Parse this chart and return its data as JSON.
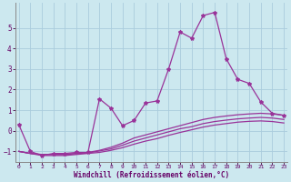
{
  "xlabel": "Windchill (Refroidissement éolien,°C)",
  "background_color": "#cce8ef",
  "grid_color": "#aaccdd",
  "line_color": "#993399",
  "x_hours": [
    0,
    1,
    2,
    3,
    4,
    5,
    6,
    7,
    8,
    9,
    10,
    11,
    12,
    13,
    14,
    15,
    16,
    17,
    18,
    19,
    20,
    21,
    22,
    23
  ],
  "line1": [
    0.3,
    -1.0,
    -1.2,
    -1.1,
    -1.1,
    -1.05,
    -1.05,
    1.55,
    1.1,
    0.25,
    0.5,
    1.35,
    1.45,
    3.0,
    4.8,
    4.5,
    5.6,
    5.75,
    3.5,
    2.5,
    2.3,
    1.4,
    0.85,
    0.75
  ],
  "line2": [
    -1.0,
    -1.1,
    -1.15,
    -1.15,
    -1.15,
    -1.1,
    -1.05,
    -0.95,
    -0.8,
    -0.6,
    -0.35,
    -0.2,
    -0.05,
    0.1,
    0.25,
    0.4,
    0.55,
    0.65,
    0.72,
    0.78,
    0.82,
    0.85,
    0.82,
    0.75
  ],
  "line3": [
    -1.0,
    -1.1,
    -1.15,
    -1.15,
    -1.15,
    -1.1,
    -1.08,
    -0.98,
    -0.88,
    -0.7,
    -0.5,
    -0.35,
    -0.2,
    -0.05,
    0.1,
    0.2,
    0.35,
    0.45,
    0.52,
    0.58,
    0.62,
    0.65,
    0.62,
    0.55
  ],
  "line4": [
    -1.0,
    -1.1,
    -1.2,
    -1.2,
    -1.2,
    -1.15,
    -1.1,
    -1.05,
    -0.95,
    -0.82,
    -0.65,
    -0.5,
    -0.38,
    -0.22,
    -0.08,
    0.05,
    0.18,
    0.28,
    0.35,
    0.42,
    0.46,
    0.48,
    0.45,
    0.38
  ],
  "ylim": [
    -1.5,
    6.2
  ],
  "yticks": [
    -1,
    0,
    1,
    2,
    3,
    4,
    5
  ],
  "xtick_labels": [
    "0",
    "1",
    "2",
    "3",
    "4",
    "5",
    "6",
    "7",
    "8",
    "9",
    "10",
    "11",
    "12",
    "13",
    "14",
    "15",
    "16",
    "17",
    "18",
    "19",
    "20",
    "21",
    "22",
    "23"
  ]
}
